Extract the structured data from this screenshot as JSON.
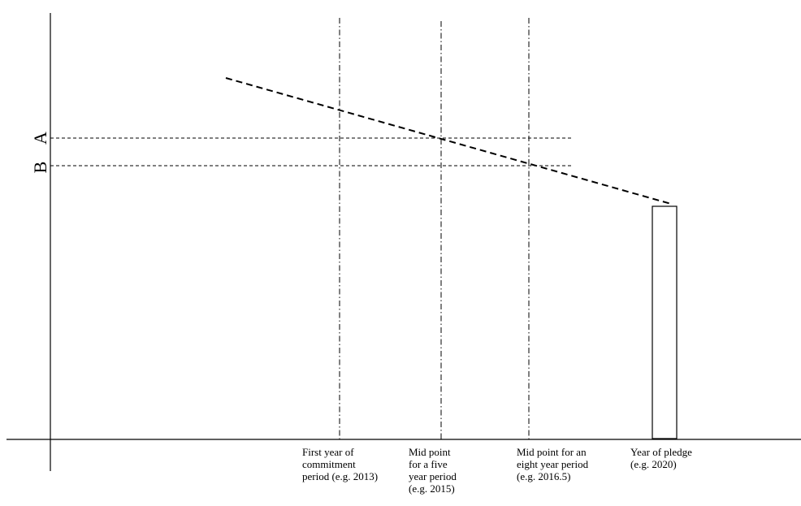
{
  "diagram": {
    "level_labels": {
      "a": "A",
      "b": "B"
    },
    "x_labels": [
      {
        "id": "first-year",
        "text": "First year of\ncommitment\nperiod (e.g. 2013)"
      },
      {
        "id": "mid-five",
        "text": "Mid point\nfor a five\nyear period\n(e.g. 2015)"
      },
      {
        "id": "mid-eight",
        "text": "Mid point for an\neight year period\n(e.g. 2016.5)"
      },
      {
        "id": "pledge",
        "text": "Year of pledge\n(e.g. 2020)"
      }
    ],
    "colors": {
      "line": "#000000",
      "background": "#ffffff"
    }
  }
}
